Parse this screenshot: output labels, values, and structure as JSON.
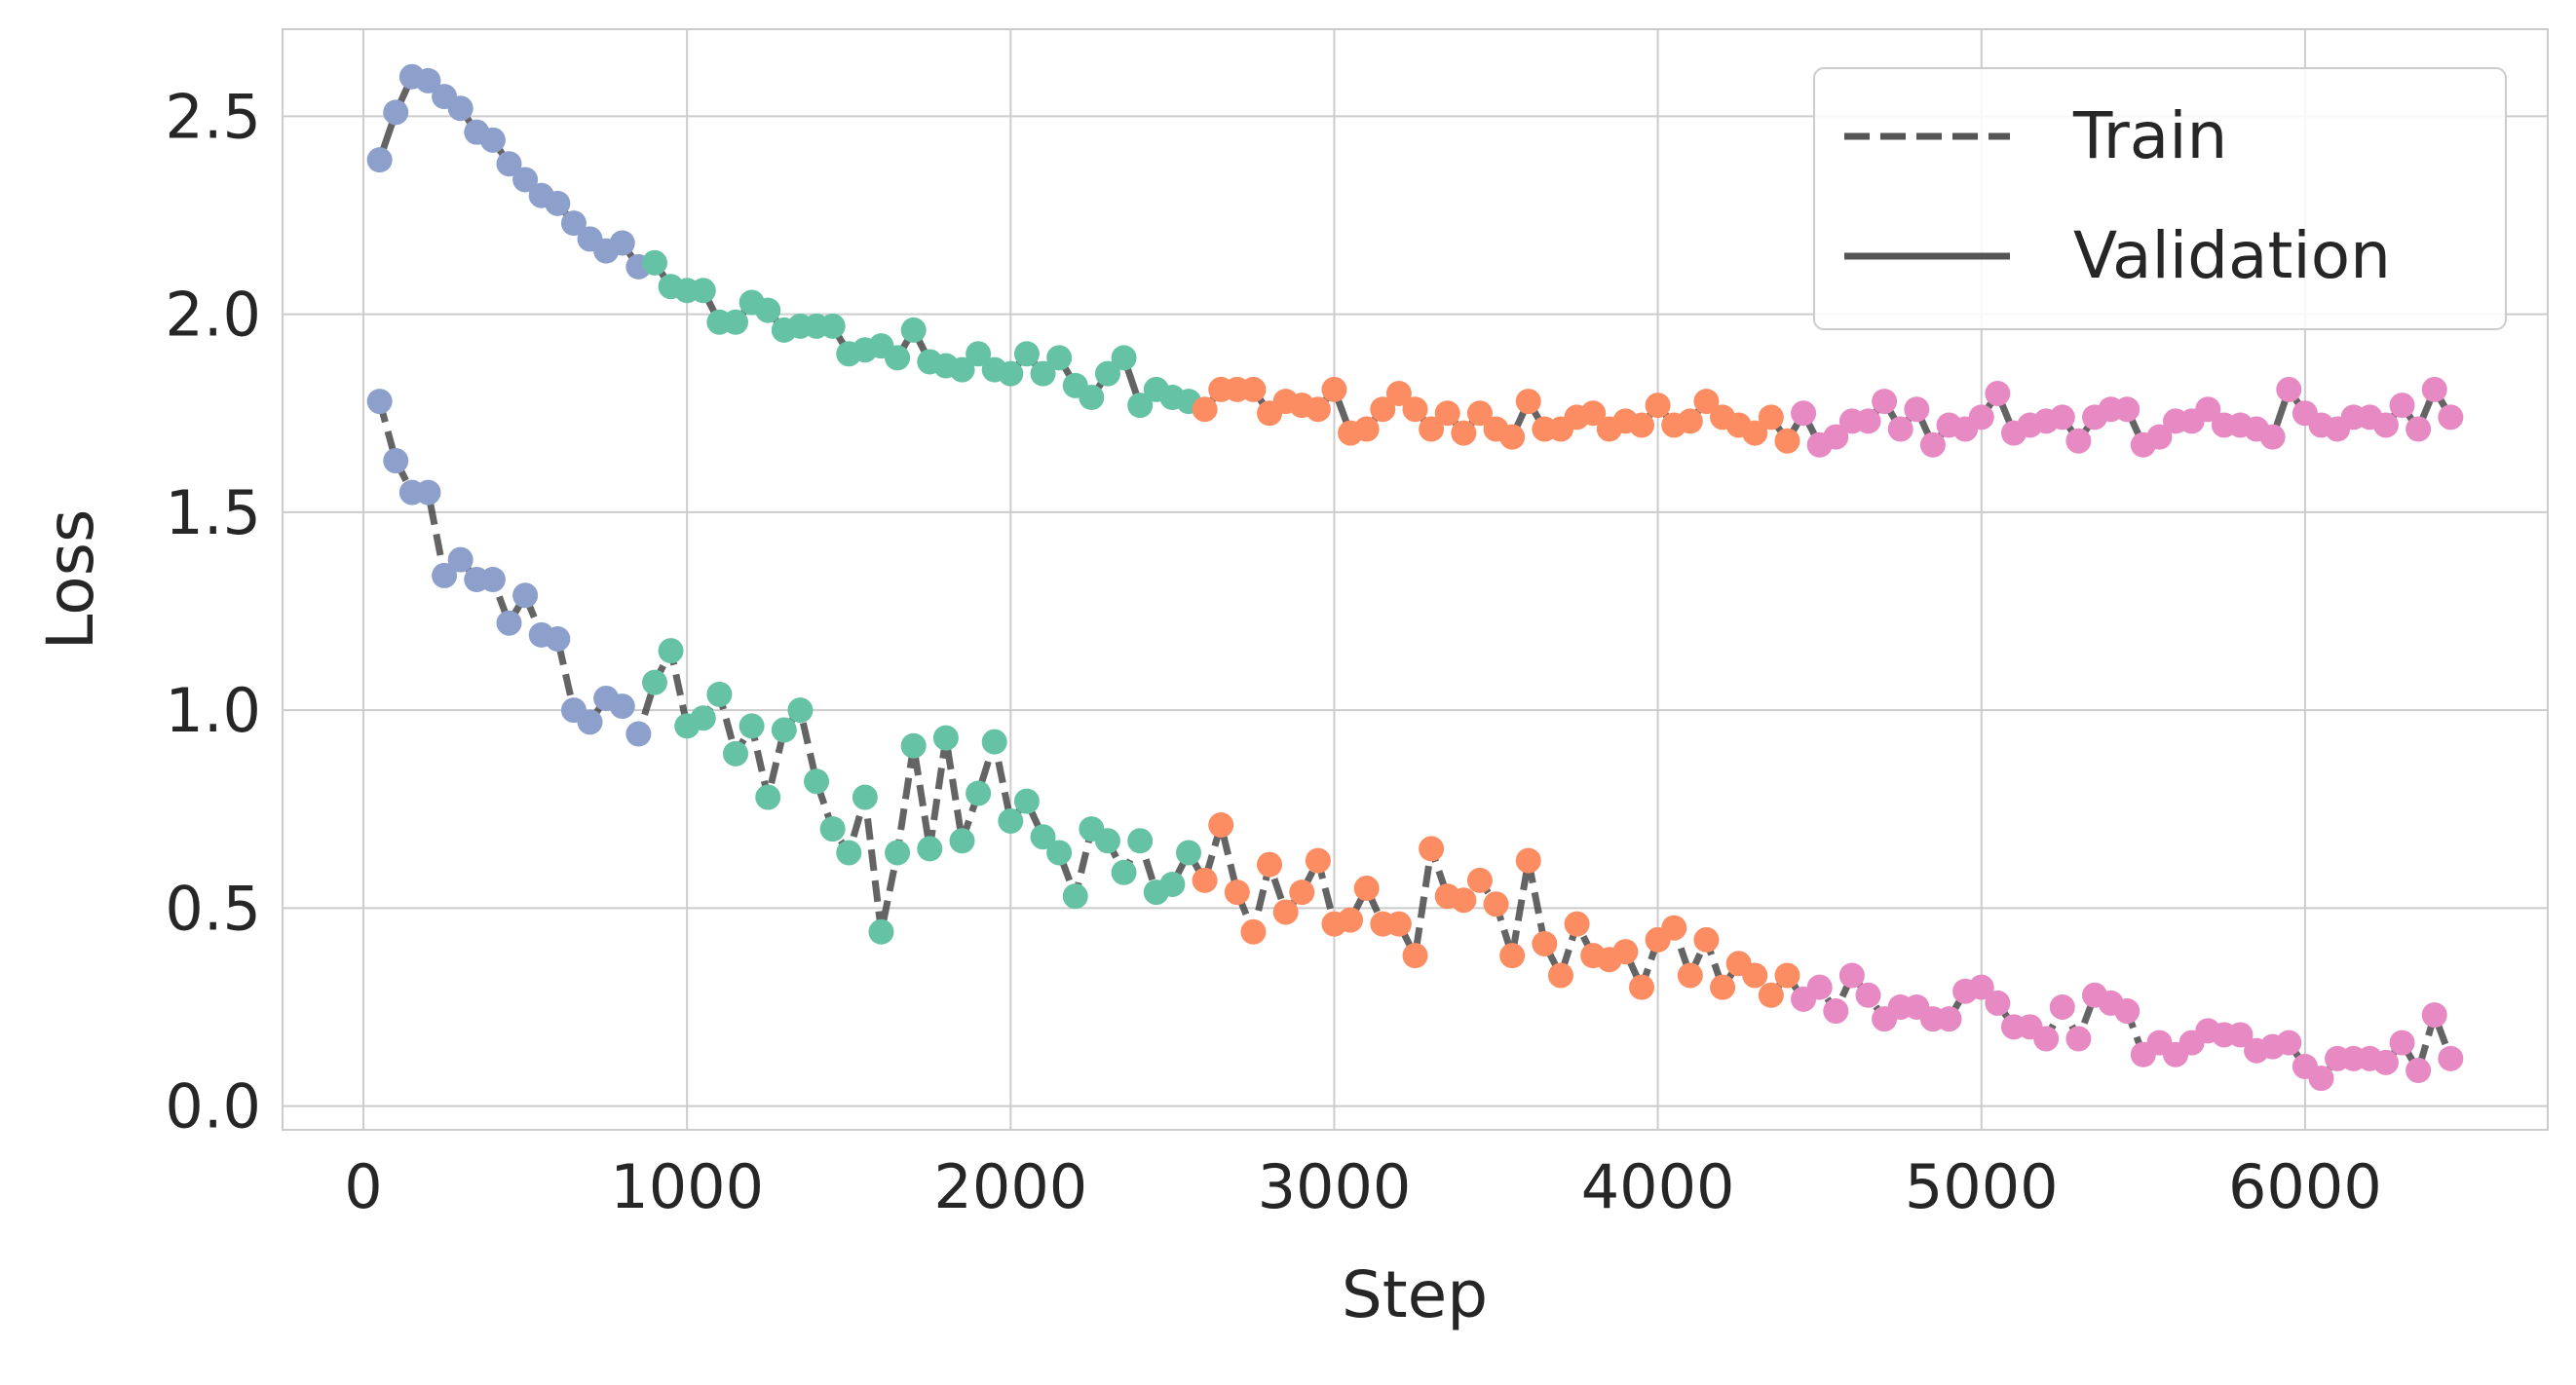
{
  "chart_data": {
    "type": "line",
    "xlabel": "Step",
    "ylabel": "Loss",
    "xlim": [
      -250,
      6750
    ],
    "ylim": [
      -0.06,
      2.72
    ],
    "xticks": [
      0,
      1000,
      2000,
      3000,
      4000,
      5000,
      6000
    ],
    "xtick_labels": [
      "0",
      "1000",
      "2000",
      "3000",
      "4000",
      "5000",
      "6000"
    ],
    "yticks": [
      0.0,
      0.5,
      1.0,
      1.5,
      2.0,
      2.5
    ],
    "ytick_labels": [
      "0.0",
      "0.5",
      "1.0",
      "1.5",
      "2.0",
      "2.5"
    ],
    "grid": true,
    "legend_position": "top-right",
    "legend": [
      {
        "label": "Train",
        "style": "dashed"
      },
      {
        "label": "Validation",
        "style": "solid"
      }
    ],
    "line_color": "#3d3d3d",
    "phase_colors": [
      "#8da0cb",
      "#66c2a5",
      "#fc8d62",
      "#e78ac3"
    ],
    "phase_boundaries": [
      900,
      2600,
      4450
    ],
    "x": [
      50,
      100,
      150,
      200,
      250,
      300,
      350,
      400,
      450,
      500,
      550,
      600,
      650,
      700,
      750,
      800,
      850,
      900,
      950,
      1000,
      1050,
      1100,
      1150,
      1200,
      1250,
      1300,
      1350,
      1400,
      1450,
      1500,
      1550,
      1600,
      1650,
      1700,
      1750,
      1800,
      1850,
      1900,
      1950,
      2000,
      2050,
      2100,
      2150,
      2200,
      2250,
      2300,
      2350,
      2400,
      2450,
      2500,
      2550,
      2600,
      2650,
      2700,
      2750,
      2800,
      2850,
      2900,
      2950,
      3000,
      3050,
      3100,
      3150,
      3200,
      3250,
      3300,
      3350,
      3400,
      3450,
      3500,
      3550,
      3600,
      3650,
      3700,
      3750,
      3800,
      3850,
      3900,
      3950,
      4000,
      4050,
      4100,
      4150,
      4200,
      4250,
      4300,
      4350,
      4400,
      4450,
      4500,
      4550,
      4600,
      4650,
      4700,
      4750,
      4800,
      4850,
      4900,
      4950,
      5000,
      5050,
      5100,
      5150,
      5200,
      5250,
      5300,
      5350,
      5400,
      5450,
      5500,
      5550,
      5600,
      5650,
      5700,
      5750,
      5800,
      5850,
      5900,
      5950,
      6000,
      6050,
      6100,
      6150,
      6200,
      6250,
      6300,
      6350,
      6400,
      6450
    ],
    "series": [
      {
        "name": "Train",
        "style": "dashed",
        "values": [
          1.78,
          1.63,
          1.55,
          1.55,
          1.34,
          1.38,
          1.33,
          1.33,
          1.22,
          1.29,
          1.19,
          1.18,
          1.0,
          0.97,
          1.03,
          1.01,
          0.94,
          1.07,
          1.15,
          0.96,
          0.98,
          1.04,
          0.89,
          0.96,
          0.78,
          0.95,
          1.0,
          0.82,
          0.7,
          0.64,
          0.78,
          0.44,
          0.64,
          0.91,
          0.65,
          0.93,
          0.67,
          0.79,
          0.92,
          0.72,
          0.77,
          0.68,
          0.64,
          0.53,
          0.7,
          0.67,
          0.59,
          0.67,
          0.54,
          0.56,
          0.64,
          0.57,
          0.71,
          0.54,
          0.44,
          0.61,
          0.49,
          0.54,
          0.62,
          0.46,
          0.47,
          0.55,
          0.46,
          0.46,
          0.38,
          0.65,
          0.53,
          0.52,
          0.57,
          0.51,
          0.38,
          0.62,
          0.41,
          0.33,
          0.46,
          0.38,
          0.37,
          0.39,
          0.3,
          0.42,
          0.45,
          0.33,
          0.42,
          0.3,
          0.36,
          0.33,
          0.28,
          0.33,
          0.27,
          0.3,
          0.24,
          0.33,
          0.28,
          0.22,
          0.25,
          0.25,
          0.22,
          0.22,
          0.29,
          0.3,
          0.26,
          0.2,
          0.2,
          0.17,
          0.25,
          0.17,
          0.28,
          0.26,
          0.24,
          0.13,
          0.16,
          0.13,
          0.16,
          0.19,
          0.18,
          0.18,
          0.14,
          0.15,
          0.16,
          0.1,
          0.07,
          0.12,
          0.12,
          0.12,
          0.11,
          0.16,
          0.09,
          0.23,
          0.12
        ]
      },
      {
        "name": "Validation",
        "style": "solid",
        "values": [
          2.39,
          2.51,
          2.6,
          2.59,
          2.55,
          2.52,
          2.46,
          2.44,
          2.38,
          2.34,
          2.3,
          2.28,
          2.23,
          2.19,
          2.16,
          2.18,
          2.12,
          2.13,
          2.07,
          2.06,
          2.06,
          1.98,
          1.98,
          2.03,
          2.01,
          1.96,
          1.97,
          1.97,
          1.97,
          1.9,
          1.91,
          1.92,
          1.89,
          1.96,
          1.88,
          1.87,
          1.86,
          1.9,
          1.86,
          1.85,
          1.9,
          1.85,
          1.89,
          1.82,
          1.79,
          1.85,
          1.89,
          1.77,
          1.81,
          1.79,
          1.78,
          1.76,
          1.81,
          1.81,
          1.81,
          1.75,
          1.78,
          1.77,
          1.76,
          1.81,
          1.7,
          1.71,
          1.76,
          1.8,
          1.76,
          1.71,
          1.75,
          1.7,
          1.75,
          1.71,
          1.69,
          1.78,
          1.71,
          1.71,
          1.74,
          1.75,
          1.71,
          1.73,
          1.72,
          1.77,
          1.72,
          1.73,
          1.78,
          1.74,
          1.72,
          1.7,
          1.74,
          1.68,
          1.75,
          1.67,
          1.69,
          1.73,
          1.73,
          1.78,
          1.71,
          1.76,
          1.67,
          1.72,
          1.71,
          1.74,
          1.8,
          1.7,
          1.72,
          1.73,
          1.74,
          1.68,
          1.74,
          1.76,
          1.76,
          1.67,
          1.69,
          1.73,
          1.73,
          1.76,
          1.72,
          1.72,
          1.71,
          1.69,
          1.81,
          1.75,
          1.72,
          1.71,
          1.74,
          1.74,
          1.72,
          1.77,
          1.71,
          1.81,
          1.74
        ]
      }
    ]
  }
}
